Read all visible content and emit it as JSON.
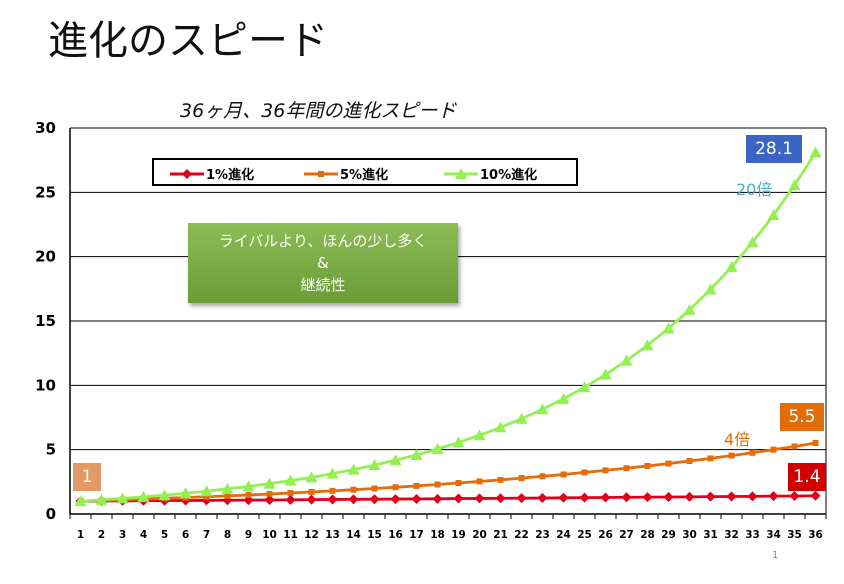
{
  "slide_title": "進化のスピード",
  "page_number": "1",
  "note_box": {
    "line1": "ライバルより、ほんの少し多く",
    "line2": "&",
    "line3": "継続性"
  },
  "callouts": {
    "start": "1",
    "one_pct_end": "1.4",
    "five_pct_end": "5.5",
    "ten_pct_end": "28.1"
  },
  "ratio_labels": {
    "five_pct": "4倍",
    "ten_pct": "20倍"
  },
  "colors": {
    "one_pct": "#e0001b",
    "five_pct": "#e46c0a",
    "ten_pct": "#92f050",
    "callout_start": "#e39a63",
    "callout_one_pct": "#d10000",
    "callout_five_pct": "#e36c09",
    "callout_ten_pct": "#3b64c4",
    "ratio_five_pct": "#e36c09",
    "ratio_ten_pct": "#4bacc6"
  },
  "chart_data": {
    "type": "line",
    "title": "36ヶ月、36年間の進化スピード",
    "xlabel": "",
    "ylabel": "",
    "ylim": [
      0,
      30
    ],
    "yticks": [
      0,
      5,
      10,
      15,
      20,
      25,
      30
    ],
    "grid": true,
    "legend_position": "top-left",
    "x": [
      1,
      2,
      3,
      4,
      5,
      6,
      7,
      8,
      9,
      10,
      11,
      12,
      13,
      14,
      15,
      16,
      17,
      18,
      19,
      20,
      21,
      22,
      23,
      24,
      25,
      26,
      27,
      28,
      29,
      30,
      31,
      32,
      33,
      34,
      35,
      36
    ],
    "series": [
      {
        "name": "1%進化",
        "marker": "diamond",
        "values": [
          1.0,
          1.01,
          1.02,
          1.03,
          1.04,
          1.05,
          1.06,
          1.07,
          1.08,
          1.09,
          1.1,
          1.12,
          1.13,
          1.14,
          1.15,
          1.16,
          1.17,
          1.18,
          1.2,
          1.21,
          1.22,
          1.23,
          1.24,
          1.26,
          1.27,
          1.28,
          1.3,
          1.31,
          1.32,
          1.33,
          1.35,
          1.36,
          1.37,
          1.39,
          1.4,
          1.42
        ]
      },
      {
        "name": "5%進化",
        "marker": "square",
        "values": [
          1.0,
          1.05,
          1.1,
          1.16,
          1.22,
          1.28,
          1.34,
          1.41,
          1.48,
          1.55,
          1.63,
          1.71,
          1.8,
          1.89,
          1.98,
          2.08,
          2.18,
          2.29,
          2.41,
          2.53,
          2.65,
          2.79,
          2.93,
          3.07,
          3.23,
          3.39,
          3.56,
          3.73,
          3.92,
          4.12,
          4.32,
          4.54,
          4.76,
          5.0,
          5.25,
          5.52
        ]
      },
      {
        "name": "10%進化",
        "marker": "triangle",
        "values": [
          1.0,
          1.1,
          1.21,
          1.33,
          1.46,
          1.61,
          1.77,
          1.95,
          2.14,
          2.36,
          2.59,
          2.85,
          3.14,
          3.45,
          3.8,
          4.18,
          4.59,
          5.05,
          5.56,
          6.12,
          6.73,
          7.4,
          8.14,
          8.95,
          9.85,
          10.83,
          11.92,
          13.11,
          14.42,
          15.86,
          17.45,
          19.19,
          21.11,
          23.23,
          25.55,
          28.1
        ]
      }
    ]
  }
}
